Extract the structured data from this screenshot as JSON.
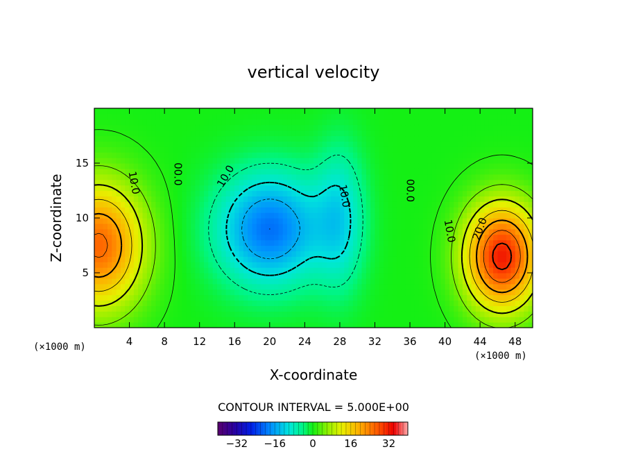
{
  "chart_data": {
    "type": "heatmap",
    "title": "vertical velocity",
    "xlabel": "X-coordinate",
    "ylabel": "Z-coordinate",
    "x_unit": "(×1000 m)",
    "y_unit": "(×1000 m)",
    "xlim": [
      0,
      50
    ],
    "ylim": [
      0,
      20
    ],
    "x_ticks": [
      4,
      8,
      12,
      16,
      20,
      24,
      28,
      32,
      36,
      40,
      44,
      48
    ],
    "y_ticks": [
      5,
      10,
      15
    ],
    "contour_interval_text": "CONTOUR INTERVAL = 5.000E+00",
    "contour_labels": [
      {
        "text": "10.0",
        "x": 4.5,
        "z": 13.2,
        "angle": 80
      },
      {
        "text": "00.0",
        "x": 9.5,
        "z": 14.0,
        "angle": 90
      },
      {
        "text": "10.0",
        "x": 15.0,
        "z": 13.8,
        "angle": -60
      },
      {
        "text": "10.0",
        "x": 28.5,
        "z": 12.0,
        "angle": 80
      },
      {
        "text": "00.0",
        "x": 36.0,
        "z": 12.5,
        "angle": 90
      },
      {
        "text": "10.0",
        "x": 40.5,
        "z": 8.8,
        "angle": 80
      },
      {
        "text": "20.0",
        "x": 44.0,
        "z": 9.0,
        "angle": -70
      }
    ],
    "features": [
      {
        "type": "updraft",
        "x": 0.5,
        "z": 7.5,
        "peak": 26,
        "sx": 3.6,
        "sz": 4.0
      },
      {
        "type": "downdraft",
        "x": 20.0,
        "z": 9.0,
        "peak": -20,
        "sx": 4.2,
        "sz": 3.6
      },
      {
        "type": "downdraft",
        "x": 28.0,
        "z": 10.0,
        "peak": -10,
        "sx": 2.0,
        "sz": 4.5
      },
      {
        "type": "updraft",
        "x": 46.5,
        "z": 6.5,
        "peak": 32,
        "sx": 3.0,
        "sz": 3.4
      }
    ],
    "colorbar": {
      "range": [
        -40,
        40
      ],
      "ticks": [
        -32,
        -16,
        0,
        16,
        32
      ],
      "tick_labels": [
        "−32",
        "−16",
        "0",
        "16",
        "32"
      ]
    }
  }
}
